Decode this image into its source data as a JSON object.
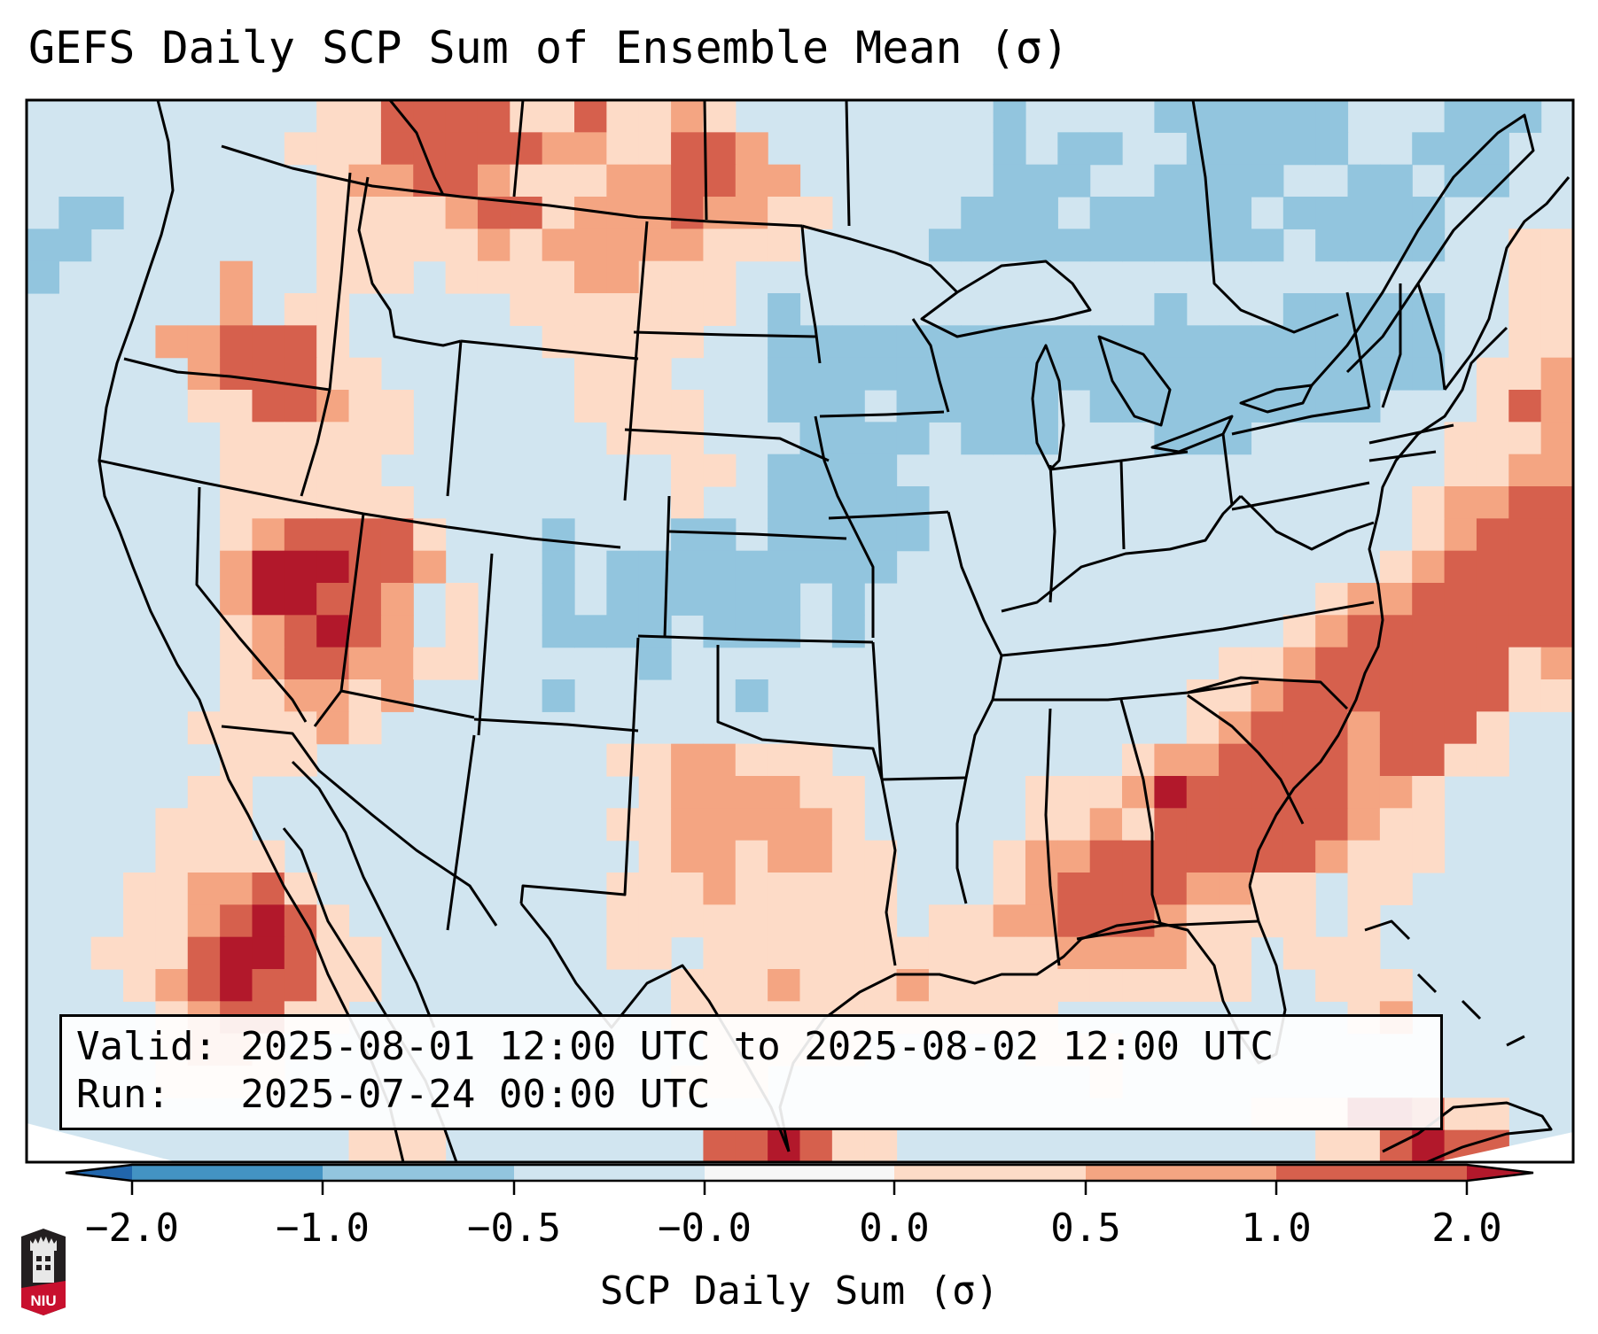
{
  "title": "GEFS Daily SCP Sum of Ensemble Mean (σ)",
  "annotation": {
    "valid_line": "Valid: 2025-08-01 12:00 UTC to 2025-08-02 12:00 UTC",
    "run_line": "Run:   2025-07-24 00:00 UTC",
    "valid_start": "2025-08-01 12:00 UTC",
    "valid_end": "2025-08-02 12:00 UTC",
    "run": "2025-07-24 00:00 UTC"
  },
  "colorbar": {
    "label": "SCP Daily Sum (σ)",
    "ticks": [
      "−2.0",
      "−1.0",
      "−0.5",
      "−0.0",
      "0.0",
      "0.5",
      "1.0",
      "2.0"
    ],
    "bounds": [
      -2.0,
      -1.0,
      -0.5,
      -0.0,
      0.0,
      0.5,
      1.0,
      2.0
    ],
    "extend": "both",
    "under_color": "#2166ac",
    "over_color": "#b2182b",
    "bin_colors": [
      "#4393c3",
      "#92c5de",
      "#d1e5f0",
      "#f7f7f7",
      "#fddbc7",
      "#f4a582",
      "#d6604d"
    ]
  },
  "logo": {
    "text": "NIU",
    "colors": {
      "dark": "#231f20",
      "red": "#c8102e"
    }
  },
  "chart_data": {
    "type": "heatmap",
    "title": "GEFS Daily SCP Sum of Ensemble Mean (σ)",
    "xlabel": "",
    "ylabel": "",
    "colorbar_label": "SCP Daily Sum (σ)",
    "region": "Contiguous United States with southern Canada, northern Mexico, Gulf of Mexico and western Atlantic",
    "legend": "bottom",
    "grid": false,
    "value_key": {
      "U": "< -2.0",
      "D": "-2.0 to -1.0",
      "B": "-1.0 to -0.5",
      "b": "-0.5 to -0.0",
      "w": "-0.0 to 0.0",
      "p": "0.0 to 0.5",
      "o": "0.5 to 1.0",
      "r": "1.0 to 2.0",
      "R": "> 2.0"
    },
    "category_colors": {
      "U": "#2166ac",
      "D": "#4393c3",
      "B": "#92c5de",
      "b": "#d1e5f0",
      "w": "#f7f7f7",
      "p": "#fddbc7",
      "o": "#f4a582",
      "r": "#d6604d",
      "R": "#b2182b"
    },
    "grid_rows": [
      "bbbbbbbbbpprrrrpprppopbbbbbbbbBbbbbBBBBBBbbbBBBb",
      "bbbbbbbbppprrrrroopprrobbbbbbbBbBBbbBBBBBbbBBBbb",
      "bbbbbbbbbpoorropppoorroobbbbbbBBBbbBBBBbbBBbBBbb",
      "bBBbbbbbbpppporrpooorooppbbbbBBBbBBBBBbBBBBBbbbb",
      "BBbbbbbbbpppppopooooopppbbbbBBBBBBBBBBBbBBBBbbpp",
      "Bbbbbbobbpppbppppoopppbbbbbbbbbbbbbbbbbbbbbbbbpp",
      "bbbbbbobppbbbbbpppppppbBbbbbbbbbbbbBbbbBBBBBbbpp",
      "bbbboorrrpbbbbbbpppppbbBBBBBBBBBBBBBBBBBBBBBbbpp",
      "bbbbborrrppbbbbbbpppbbbBBBBBBBBBBBBBBBBBBBBBbppo",
      "bbbbbpprroppbbbbbppppbbBBBbBBBBBbBBBBBBBBBbbbpro",
      "bbbbbbppppppbbbbbbpppbbbBBBBbBBBbbbBBBbbbbbbpppo",
      "bbbbbbpppppbbbbbbbbbppbBBBBbbbbbbbbbbbbbbbbbppoo",
      "bbbbbbppppppbbbbbbbbpbbBBBBBbbbbbbbbbbbbbbbpoorr",
      "bbbbbbporrrrpbbbBbbbBBbBBBBBbbbbbbbbbbbbbbbporrr",
      "bbbbbboRRRrrobbbBbBBBBBBBBBbbbbbbbbbbbbbbbporrrr",
      "bbbbbboRRrrobpbbBbBBBBBBbBbbbbbbbbbbbbbbpoorrrrr",
      "bbbbbbporRrobpbbBBBBbBBBbBbbbbbbbbbbbbbporrrrrrr",
      "bbbbbbporrooppbbbbbBbbbbbbbbbbbbbbbbbpporrrrrrpo",
      "bbbbbbppoopobbbbBbbbbbBbbbbbbbbbbbbbpporrrrrrrpp",
      "bbbbbppppopbbbbbbbbbbbbbbbbbbbbbbbbbporrrorrrpbb",
      "bbbbbbpppbbbbbbbbbppoopppbbbbbbbbbpoorrrrorrppbb",
      "bbbbbppbbbbbbbbbbbbpooooppbbbbbpppoRrrrrroopbbbb",
      "bbbbpppbbbbbbbbbbbppooooopbbbbbppoprrrrrroppbbbb",
      "bbbbppppbbbbbbbbbbbpoopooppbbbpoorrrrrrropppbbbb",
      "bbbppoorpbbbbbbbbbpppopppppbbbporrrrooppbppbbbbb",
      "bbbpporRrpbbbbbbbbpppppppppbppoorrroppppbpbbbbbb",
      "bbppprRRrppbbbbbbbppbpppppppppppooooppbpppbbbbbb",
      "bbbporRrrppbbbbbbbbbpppopppoppppppppppbbpppbbbbb",
      "bbbbporrppbbbbbbbbbbppppppppppppbbbbbbbbbpobbbbb",
      "bbbbpoopbbbbbbbbbbbbbpppppbbbbbpppbbbbbbbbbbbbbb",
      "bbbbppppbbbbbbbbbbbbpppbbbbbbbbbbpbbbbbbbbbbbbbb",
      "bbbbbbbbbbbbbbbbbbbbbbbbbbbbbbbbbbbbbbpppRRrppbb",
      "bbbbbbbbbbpppbbbbbbbbrrRrppbbbbbbbbbbbbbpprRrrbb"
    ]
  }
}
